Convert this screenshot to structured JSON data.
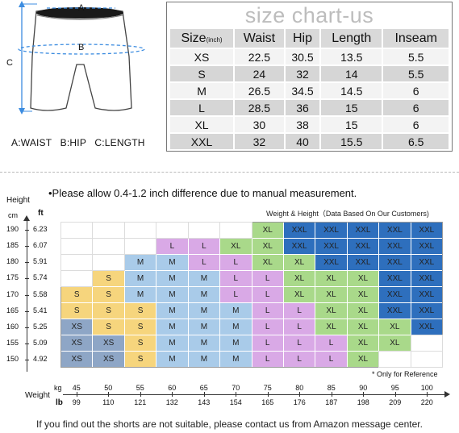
{
  "diagram": {
    "label_a": "A",
    "label_b": "B",
    "label_c": "C",
    "legend": "A:WAIST   B:HIP   C:LENGTH"
  },
  "size_chart": {
    "title": "size chart-us",
    "header_size": "Size",
    "header_unit": "(inch)",
    "headers": [
      "Waist",
      "Hip",
      "Length",
      "Inseam"
    ],
    "rows": [
      [
        "XS",
        "22.5",
        "30.5",
        "13.5",
        "5.5"
      ],
      [
        "S",
        "24",
        "32",
        "14",
        "5.5"
      ],
      [
        "M",
        "26.5",
        "34.5",
        "14.5",
        "6"
      ],
      [
        "L",
        "28.5",
        "36",
        "15",
        "6"
      ],
      [
        "XL",
        "30",
        "38",
        "15",
        "6"
      ],
      [
        "XXL",
        "32",
        "40",
        "15.5",
        "6.5"
      ]
    ]
  },
  "grid": {
    "note": "•Please allow 0.4-1.2 inch difference due to manual measurement.",
    "caption": "Weight & Height（Data Based On Our Customers)",
    "height_label": "Height",
    "cm_label": "cm",
    "ft_label": "ft",
    "weight_label": "Weight",
    "kg_label": "kg",
    "lb_label": "lb",
    "ref_note": "* Only for Reference",
    "heights_cm": [
      "190",
      "185",
      "180",
      "175",
      "170",
      "165",
      "160",
      "155",
      "150"
    ],
    "heights_ft": [
      "6.23",
      "6.07",
      "5.91",
      "5.74",
      "5.58",
      "5.41",
      "5.25",
      "5.09",
      "4.92"
    ],
    "weights_kg": [
      "45",
      "50",
      "55",
      "60",
      "65",
      "70",
      "75",
      "80",
      "85",
      "90",
      "95",
      "100"
    ],
    "weights_lb": [
      "99",
      "110",
      "121",
      "132",
      "143",
      "154",
      "165",
      "176",
      "187",
      "198",
      "209",
      "220"
    ],
    "cells": [
      [
        "",
        "",
        "",
        "",
        "",
        "",
        "XL",
        "XXL",
        "XXL",
        "XXL",
        "XXL",
        "XXL"
      ],
      [
        "",
        "",
        "",
        "L",
        "L",
        "XL",
        "XL",
        "XXL",
        "XXL",
        "XXL",
        "XXL",
        "XXL"
      ],
      [
        "",
        "",
        "M",
        "M",
        "L",
        "L",
        "XL",
        "XL",
        "XXL",
        "XXL",
        "XXL",
        "XXL"
      ],
      [
        "",
        "S",
        "M",
        "M",
        "M",
        "L",
        "L",
        "XL",
        "XL",
        "XL",
        "XXL",
        "XXL"
      ],
      [
        "S",
        "S",
        "M",
        "M",
        "M",
        "L",
        "L",
        "XL",
        "XL",
        "XL",
        "XXL",
        "XXL"
      ],
      [
        "S",
        "S",
        "S",
        "M",
        "M",
        "M",
        "L",
        "L",
        "XL",
        "XL",
        "XXL",
        "XXL"
      ],
      [
        "XS",
        "S",
        "S",
        "M",
        "M",
        "M",
        "L",
        "L",
        "XL",
        "XL",
        "XL",
        "XXL"
      ],
      [
        "XS",
        "XS",
        "S",
        "M",
        "M",
        "M",
        "L",
        "L",
        "L",
        "XL",
        "XL",
        ""
      ],
      [
        "XS",
        "XS",
        "S",
        "M",
        "M",
        "M",
        "L",
        "L",
        "L",
        "XL",
        "",
        ""
      ]
    ],
    "colors": {
      "XS": "#8ea6c6",
      "S": "#f6d57d",
      "M": "#a9cbe9",
      "L": "#d9a9e6",
      "XL": "#a9d98a",
      "XXL": "#2e6fbd"
    }
  },
  "footer": "If you find out the shorts are not suitable, please contact us from Amazon message center."
}
